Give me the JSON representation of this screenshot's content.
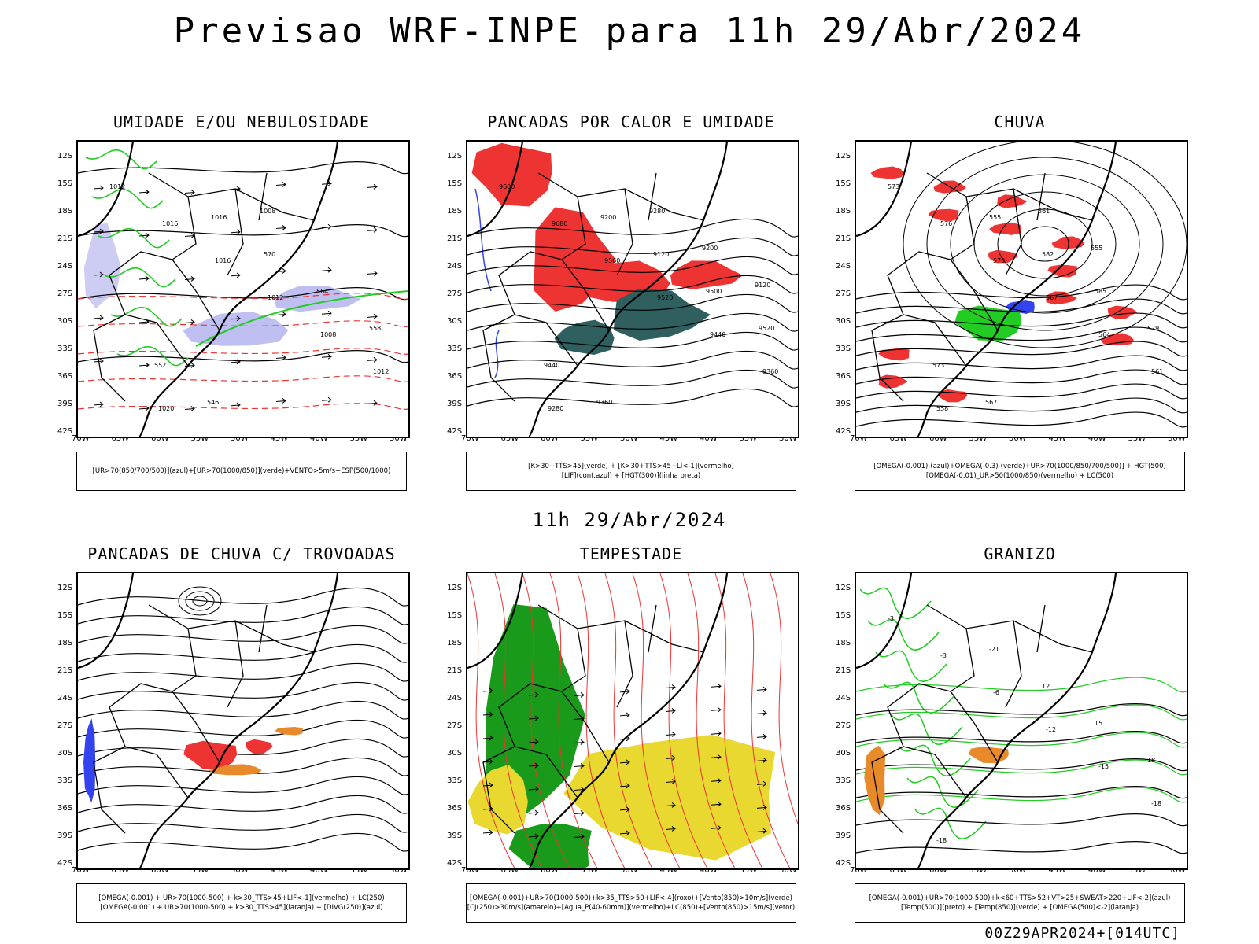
{
  "title": "Previsao WRF-INPE  para 11h 29/Abr/2024",
  "subtitle": "11h 29/Abr/2024",
  "footer": "00Z29APR2024+[014UTC]",
  "lat_ticks": [
    "12S",
    "15S",
    "18S",
    "21S",
    "24S",
    "27S",
    "30S",
    "33S",
    "36S",
    "39S",
    "42S"
  ],
  "lon_ticks": [
    "70W",
    "65W",
    "60W",
    "55W",
    "50W",
    "45W",
    "40W",
    "35W",
    "30W"
  ],
  "colors": {
    "red": "#ee3333",
    "green": "#22cc22",
    "blue": "#3344ee",
    "lavender": "#b8b8f0",
    "teal": "#2f5f5f",
    "yellow": "#e8d830",
    "orange": "#e8892a",
    "dark_green": "#1a9a1a"
  },
  "panels": [
    {
      "title": "UMIDADE E/OU NEBULOSIDADE",
      "legend": [
        "[UR>70(850/700/500)](azul)+[UR>70(1000/850)](verde)+VENTO>5m/s+ESP(500/1000)"
      ]
    },
    {
      "title": "PANCADAS POR CALOR E UMIDADE",
      "legend": [
        "[K>30+TTS>45](verde) + [K>30+TTS>45+LI<-1](vermelho)",
        "[LIF](cont.azul) + [HGT(300)](linha preta)"
      ]
    },
    {
      "title": "CHUVA",
      "legend": [
        "[OMEGA(-0.001)-(azul)+OMEGA(-0.3)-(verde)+UR>70(1000/850/700/500)] + HGT(500)",
        "[OMEGA(-0.01)_UR>50(1000/850)(vermelho) + LC(500)"
      ]
    },
    {
      "title": "PANCADAS DE CHUVA C/ TROVOADAS",
      "legend": [
        "[OMEGA(-0.001) + UR>70(1000-500) + k>30_TTS>45+LIF<-1](vermelho) + LC(250)",
        "[OMEGA(-0.001) + UR>70(1000-500) + k>30_TTS>45](laranja) + [DIVG(250)](azul)"
      ]
    },
    {
      "title": "TEMPESTADE",
      "legend": [
        "[OMEGA(-0.001)+UR>70(1000-500)+k>35_TTS>50+LIF<-4](roxo)+[Vento(850)>10m/s](verde)",
        "[CJ(250)>30m/s](amarelo)+[Agua_P(40-60mm)](vermelho)+LC(850)+[Vento(850)>15m/s](vetor)"
      ]
    },
    {
      "title": "GRANIZO",
      "legend": [
        "[OMEGA(-0.001)+UR>70(1000-500)+k<60+TTS>52+VT>25+SWEAT>220+LIF<-2](azul)",
        "[Temp(500)](preto) + [Temp(850)](verde) + [OMEGA(500)<-2](laranja)"
      ]
    }
  ],
  "contour_labels": {
    "p1": [
      "1012",
      "1016",
      "1016",
      "1012",
      "1008",
      "1012",
      "1020",
      "1016",
      "570",
      "564",
      "558",
      "552",
      "546",
      "1008"
    ],
    "p2": [
      "9600",
      "9680",
      "9560",
      "9520",
      "9440",
      "9360",
      "9280",
      "9200",
      "9120",
      "9500",
      "9520",
      "9440",
      "9360",
      "9280",
      "9200",
      "9120"
    ],
    "p3": [
      "573",
      "576",
      "570",
      "567",
      "564",
      "561",
      "558",
      "555",
      "582",
      "585",
      "579",
      "573",
      "567",
      "561",
      "555"
    ],
    "p6": [
      "-3",
      "-3",
      "-6",
      "-12",
      "-15",
      "-18",
      "-18",
      "-21",
      "12",
      "15",
      "18"
    ]
  }
}
